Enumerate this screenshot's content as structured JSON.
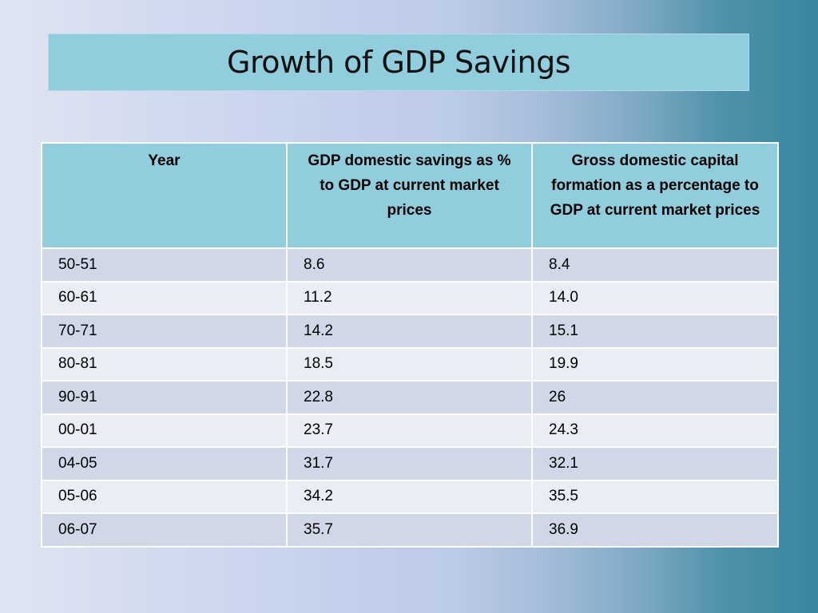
{
  "slide": {
    "title": "Growth of GDP Savings"
  },
  "table": {
    "headers": [
      "Year",
      "GDP domestic savings as % to GDP at current market prices",
      "Gross domestic capital formation as a percentage to GDP at current market prices"
    ],
    "rows": [
      [
        "50-51",
        "8.6",
        "8.4"
      ],
      [
        "60-61",
        "11.2",
        "14.0"
      ],
      [
        "70-71",
        "14.2",
        "15.1"
      ],
      [
        "80-81",
        "18.5",
        "19.9"
      ],
      [
        "90-91",
        "22.8",
        "26"
      ],
      [
        "00-01",
        "23.7",
        "24.3"
      ],
      [
        "04-05",
        "31.7",
        "32.1"
      ],
      [
        "05-06",
        "34.2",
        "35.5"
      ],
      [
        "06-07",
        "35.7",
        "36.9"
      ]
    ]
  },
  "colors": {
    "title_fill": "#92cddd",
    "header_fill": "#92cddd",
    "row_band_dark": "#d0d8e8",
    "row_band_light": "#e9edf4",
    "background_right": "#37879f"
  }
}
